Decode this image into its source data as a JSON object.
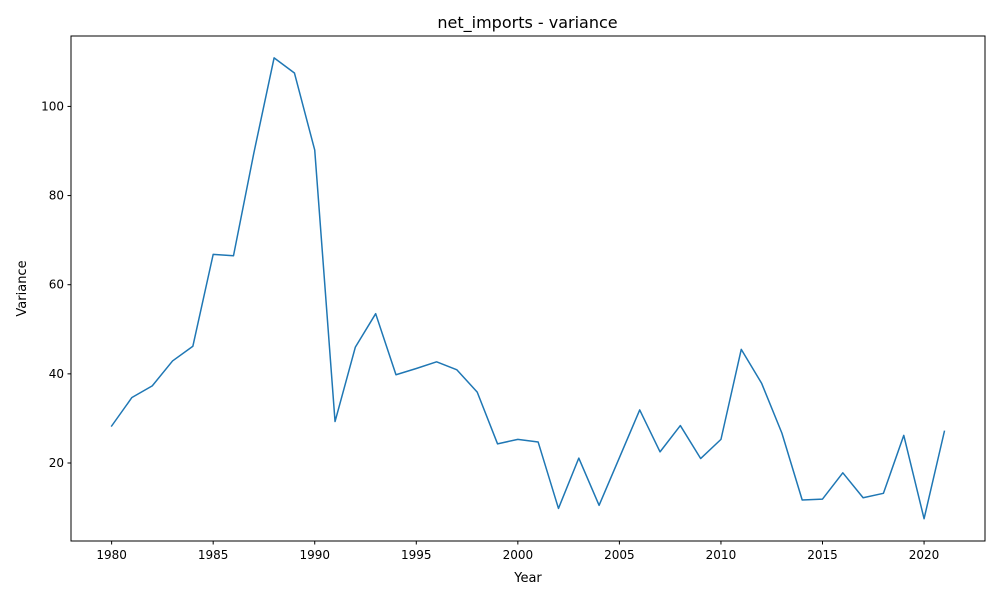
{
  "chart_data": {
    "type": "line",
    "title": "net_imports - variance",
    "xlabel": "Year",
    "ylabel": "Variance",
    "xlim": [
      1978,
      2023
    ],
    "ylim": [
      2.5,
      115.8
    ],
    "x_ticks": [
      1980,
      1985,
      1990,
      1995,
      2000,
      2005,
      2010,
      2015,
      2020
    ],
    "y_ticks": [
      20,
      40,
      60,
      80,
      100
    ],
    "grid": false,
    "legend": "none",
    "series": [
      {
        "color": "#1f77b4",
        "x": [
          1980,
          1981,
          1982,
          1983,
          1984,
          1985,
          1986,
          1987,
          1988,
          1989,
          1990,
          1991,
          1992,
          1993,
          1994,
          1995,
          1996,
          1997,
          1998,
          1999,
          2000,
          2001,
          2002,
          2003,
          2004,
          2005,
          2006,
          2007,
          2008,
          2009,
          2010,
          2011,
          2012,
          2013,
          2014,
          2015,
          2016,
          2017,
          2018,
          2019,
          2020,
          2021
        ],
        "y": [
          28.3,
          34.7,
          37.3,
          42.9,
          46.2,
          66.8,
          66.5,
          89.5,
          110.9,
          107.5,
          90.2,
          29.3,
          46.0,
          53.5,
          39.8,
          41.2,
          42.7,
          40.9,
          35.9,
          24.3,
          25.3,
          24.7,
          9.8,
          21.1,
          10.5,
          21.2,
          31.9,
          22.5,
          28.4,
          21.0,
          25.3,
          45.5,
          37.9,
          26.7,
          11.7,
          11.9,
          17.8,
          12.2,
          13.2,
          26.2,
          7.5,
          27.1
        ]
      }
    ]
  }
}
